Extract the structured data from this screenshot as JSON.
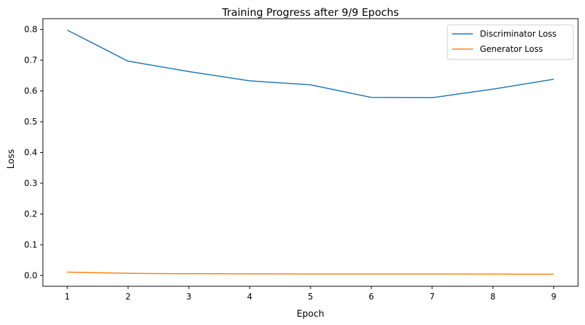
{
  "chart_data": {
    "type": "line",
    "title": "Training Progress after 9/9 Epochs",
    "xlabel": "Epoch",
    "ylabel": "Loss",
    "x": [
      1,
      2,
      3,
      4,
      5,
      6,
      7,
      8,
      9
    ],
    "xlim": [
      0.6,
      9.4
    ],
    "ylim": [
      -0.035,
      0.835
    ],
    "xticks": [
      "1",
      "2",
      "3",
      "4",
      "5",
      "6",
      "7",
      "8",
      "9"
    ],
    "yticks": [
      "0.0",
      "0.1",
      "0.2",
      "0.3",
      "0.4",
      "0.5",
      "0.6",
      "0.7",
      "0.8"
    ],
    "series": [
      {
        "name": "Discriminator Loss",
        "color": "#1f77b4",
        "values": [
          0.798,
          0.697,
          0.663,
          0.633,
          0.62,
          0.579,
          0.578,
          0.606,
          0.638
        ]
      },
      {
        "name": "Generator Loss",
        "color": "#ff7f0e",
        "values": [
          0.011,
          0.007,
          0.006,
          0.0055,
          0.005,
          0.005,
          0.0048,
          0.0045,
          0.0043
        ]
      }
    ],
    "grid": false,
    "legend_position": "top-right"
  }
}
